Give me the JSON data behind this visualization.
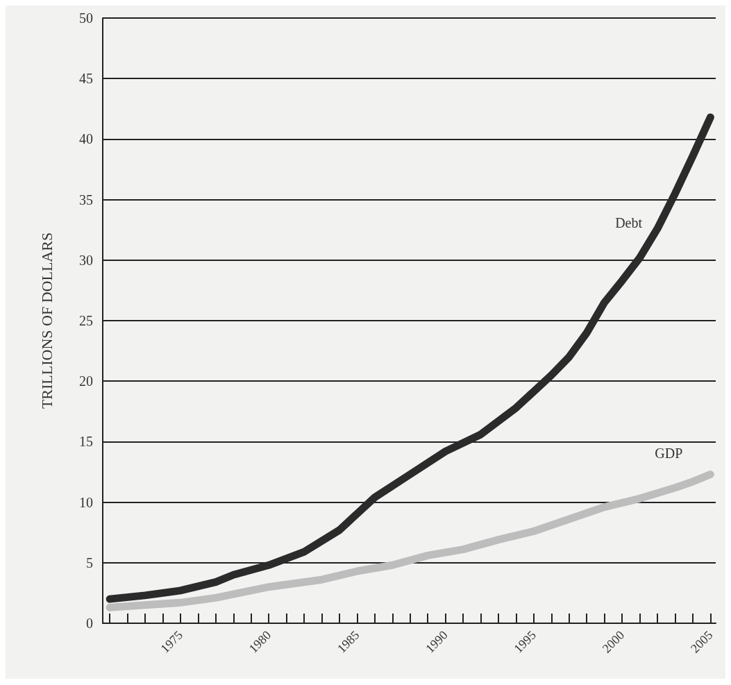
{
  "chart_data": {
    "type": "line",
    "ylabel": "TRILLIONS OF DOLLARS",
    "xlim": [
      1970.6,
      2005.3
    ],
    "ylim": [
      0,
      50
    ],
    "yticks": [
      0,
      5,
      10,
      15,
      20,
      25,
      30,
      35,
      40,
      45,
      50
    ],
    "xticks": [
      {
        "value": 1971,
        "label": null
      },
      {
        "value": 1972,
        "label": null
      },
      {
        "value": 1973,
        "label": null
      },
      {
        "value": 1974,
        "label": null
      },
      1975,
      {
        "value": 1976,
        "label": null
      },
      {
        "value": 1977,
        "label": null
      },
      {
        "value": 1978,
        "label": null
      },
      {
        "value": 1979,
        "label": null
      },
      1980,
      {
        "value": 1981,
        "label": null
      },
      {
        "value": 1982,
        "label": null
      },
      {
        "value": 1983,
        "label": null
      },
      {
        "value": 1984,
        "label": null
      },
      1985,
      {
        "value": 1986,
        "label": null
      },
      {
        "value": 1987,
        "label": null
      },
      {
        "value": 1988,
        "label": null
      },
      {
        "value": 1989,
        "label": null
      },
      1990,
      {
        "value": 1991,
        "label": null
      },
      {
        "value": 1992,
        "label": null
      },
      {
        "value": 1993,
        "label": null
      },
      {
        "value": 1994,
        "label": null
      },
      1995,
      {
        "value": 1996,
        "label": null
      },
      {
        "value": 1997,
        "label": null
      },
      {
        "value": 1998,
        "label": null
      },
      {
        "value": 1999,
        "label": null
      },
      2000,
      {
        "value": 2001,
        "label": null
      },
      {
        "value": 2002,
        "label": null
      },
      {
        "value": 2003,
        "label": null
      },
      {
        "value": 2004,
        "label": null
      },
      2005
    ],
    "grid": "y",
    "marker": "none",
    "line_style": "solid",
    "legend": false,
    "series": [
      {
        "name": "Debt",
        "color": "#2b2b2b",
        "x": [
          1971,
          1973,
          1975,
          1977,
          1978,
          1980,
          1982,
          1984,
          1986,
          1988,
          1990,
          1992,
          1994,
          1996,
          1997,
          1998,
          1999,
          2000,
          2001,
          2002,
          2003,
          2004,
          2005
        ],
        "values": [
          2.0,
          2.3,
          2.7,
          3.4,
          4.0,
          4.8,
          5.9,
          7.7,
          10.4,
          12.3,
          14.2,
          15.6,
          17.8,
          20.5,
          22.0,
          24.0,
          26.5,
          28.3,
          30.2,
          32.6,
          35.5,
          38.6,
          41.8
        ]
      },
      {
        "name": "GDP",
        "color": "#bdbdbd",
        "x": [
          1971,
          1973,
          1975,
          1977,
          1980,
          1983,
          1985,
          1987,
          1989,
          1991,
          1993,
          1995,
          1997,
          1999,
          2001,
          2003,
          2004,
          2005
        ],
        "values": [
          1.3,
          1.5,
          1.7,
          2.1,
          3.0,
          3.6,
          4.3,
          4.8,
          5.6,
          6.1,
          6.9,
          7.6,
          8.6,
          9.6,
          10.3,
          11.2,
          11.7,
          12.3
        ]
      }
    ]
  }
}
